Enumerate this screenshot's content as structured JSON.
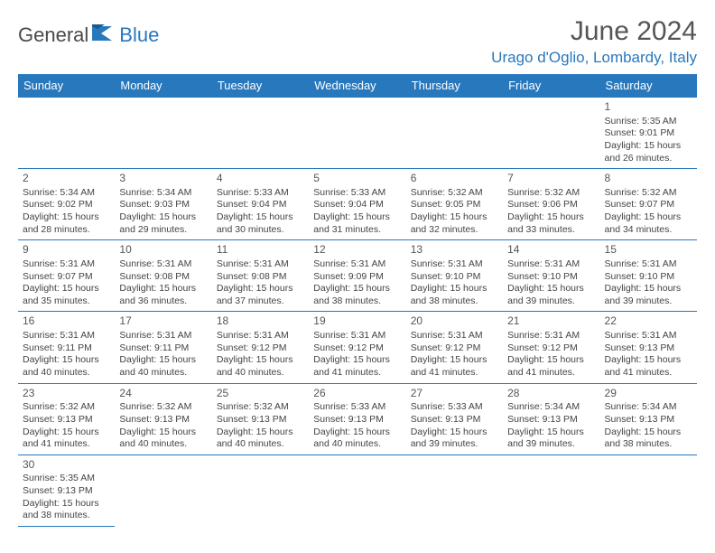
{
  "logo": {
    "text1": "General",
    "text2": "Blue"
  },
  "title": "June 2024",
  "location": "Urago d'Oglio, Lombardy, Italy",
  "colors": {
    "brand": "#2878bd",
    "text": "#444",
    "heading": "#555"
  },
  "weekdays": [
    "Sunday",
    "Monday",
    "Tuesday",
    "Wednesday",
    "Thursday",
    "Friday",
    "Saturday"
  ],
  "grid": [
    [
      null,
      null,
      null,
      null,
      null,
      null,
      {
        "n": "1",
        "sr": "5:35 AM",
        "ss": "9:01 PM",
        "dl": "15 hours and 26 minutes."
      }
    ],
    [
      {
        "n": "2",
        "sr": "5:34 AM",
        "ss": "9:02 PM",
        "dl": "15 hours and 28 minutes."
      },
      {
        "n": "3",
        "sr": "5:34 AM",
        "ss": "9:03 PM",
        "dl": "15 hours and 29 minutes."
      },
      {
        "n": "4",
        "sr": "5:33 AM",
        "ss": "9:04 PM",
        "dl": "15 hours and 30 minutes."
      },
      {
        "n": "5",
        "sr": "5:33 AM",
        "ss": "9:04 PM",
        "dl": "15 hours and 31 minutes."
      },
      {
        "n": "6",
        "sr": "5:32 AM",
        "ss": "9:05 PM",
        "dl": "15 hours and 32 minutes."
      },
      {
        "n": "7",
        "sr": "5:32 AM",
        "ss": "9:06 PM",
        "dl": "15 hours and 33 minutes."
      },
      {
        "n": "8",
        "sr": "5:32 AM",
        "ss": "9:07 PM",
        "dl": "15 hours and 34 minutes."
      }
    ],
    [
      {
        "n": "9",
        "sr": "5:31 AM",
        "ss": "9:07 PM",
        "dl": "15 hours and 35 minutes."
      },
      {
        "n": "10",
        "sr": "5:31 AM",
        "ss": "9:08 PM",
        "dl": "15 hours and 36 minutes."
      },
      {
        "n": "11",
        "sr": "5:31 AM",
        "ss": "9:08 PM",
        "dl": "15 hours and 37 minutes."
      },
      {
        "n": "12",
        "sr": "5:31 AM",
        "ss": "9:09 PM",
        "dl": "15 hours and 38 minutes."
      },
      {
        "n": "13",
        "sr": "5:31 AM",
        "ss": "9:10 PM",
        "dl": "15 hours and 38 minutes."
      },
      {
        "n": "14",
        "sr": "5:31 AM",
        "ss": "9:10 PM",
        "dl": "15 hours and 39 minutes."
      },
      {
        "n": "15",
        "sr": "5:31 AM",
        "ss": "9:10 PM",
        "dl": "15 hours and 39 minutes."
      }
    ],
    [
      {
        "n": "16",
        "sr": "5:31 AM",
        "ss": "9:11 PM",
        "dl": "15 hours and 40 minutes."
      },
      {
        "n": "17",
        "sr": "5:31 AM",
        "ss": "9:11 PM",
        "dl": "15 hours and 40 minutes."
      },
      {
        "n": "18",
        "sr": "5:31 AM",
        "ss": "9:12 PM",
        "dl": "15 hours and 40 minutes."
      },
      {
        "n": "19",
        "sr": "5:31 AM",
        "ss": "9:12 PM",
        "dl": "15 hours and 41 minutes."
      },
      {
        "n": "20",
        "sr": "5:31 AM",
        "ss": "9:12 PM",
        "dl": "15 hours and 41 minutes."
      },
      {
        "n": "21",
        "sr": "5:31 AM",
        "ss": "9:12 PM",
        "dl": "15 hours and 41 minutes."
      },
      {
        "n": "22",
        "sr": "5:31 AM",
        "ss": "9:13 PM",
        "dl": "15 hours and 41 minutes."
      }
    ],
    [
      {
        "n": "23",
        "sr": "5:32 AM",
        "ss": "9:13 PM",
        "dl": "15 hours and 41 minutes."
      },
      {
        "n": "24",
        "sr": "5:32 AM",
        "ss": "9:13 PM",
        "dl": "15 hours and 40 minutes."
      },
      {
        "n": "25",
        "sr": "5:32 AM",
        "ss": "9:13 PM",
        "dl": "15 hours and 40 minutes."
      },
      {
        "n": "26",
        "sr": "5:33 AM",
        "ss": "9:13 PM",
        "dl": "15 hours and 40 minutes."
      },
      {
        "n": "27",
        "sr": "5:33 AM",
        "ss": "9:13 PM",
        "dl": "15 hours and 39 minutes."
      },
      {
        "n": "28",
        "sr": "5:34 AM",
        "ss": "9:13 PM",
        "dl": "15 hours and 39 minutes."
      },
      {
        "n": "29",
        "sr": "5:34 AM",
        "ss": "9:13 PM",
        "dl": "15 hours and 38 minutes."
      }
    ],
    [
      {
        "n": "30",
        "sr": "5:35 AM",
        "ss": "9:13 PM",
        "dl": "15 hours and 38 minutes."
      },
      null,
      null,
      null,
      null,
      null,
      null
    ]
  ],
  "labels": {
    "sunrise": "Sunrise:",
    "sunset": "Sunset:",
    "daylight": "Daylight:"
  }
}
